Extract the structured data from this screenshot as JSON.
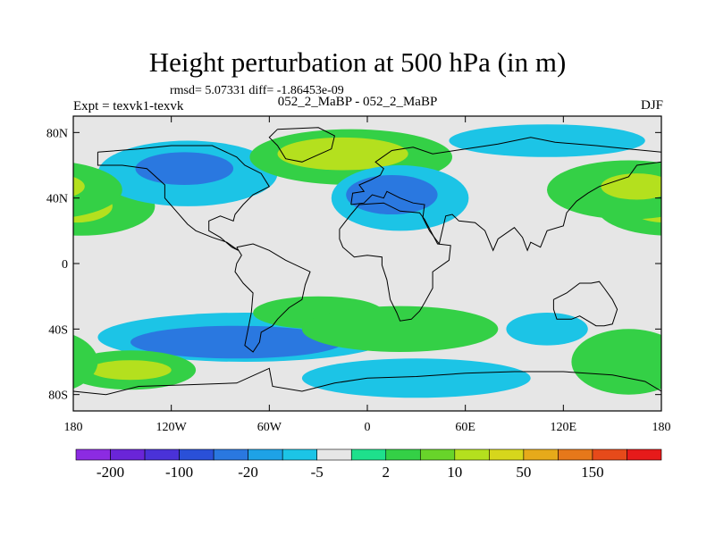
{
  "chart_data": {
    "type": "heatmap",
    "title": "Height perturbation at 500 hPa (in m)",
    "stats_text": "rmsd= 5.07331 diff= -1.86453e-09",
    "expt_label": "Expt = texvk1-texvk",
    "case_label": "052_2_MaBP - 052_2_MaBP",
    "season": "DJF",
    "xlim": [
      -180,
      180
    ],
    "ylim": [
      -90,
      90
    ],
    "x_ticks": [
      {
        "value": -180,
        "label": "180"
      },
      {
        "value": -120,
        "label": "120W"
      },
      {
        "value": -60,
        "label": "60W"
      },
      {
        "value": 0,
        "label": "0"
      },
      {
        "value": 60,
        "label": "60E"
      },
      {
        "value": 120,
        "label": "120E"
      },
      {
        "value": 180,
        "label": "180"
      }
    ],
    "y_ticks": [
      {
        "value": 80,
        "label": "80N"
      },
      {
        "value": 40,
        "label": "40N"
      },
      {
        "value": 0,
        "label": "0"
      },
      {
        "value": -40,
        "label": "40S"
      },
      {
        "value": -80,
        "label": "80S"
      }
    ],
    "colorbar": {
      "colors": [
        "#8c2be2",
        "#6a25d8",
        "#4a32d8",
        "#2a50d8",
        "#2a78e0",
        "#1ea2e6",
        "#1cc4e6",
        "#e6e6e6",
        "#1ee08c",
        "#34d046",
        "#68d42a",
        "#b4e01e",
        "#d6d61c",
        "#e6aa1a",
        "#e6781a",
        "#e64a1a",
        "#e61a1a"
      ],
      "labels": [
        {
          "index": 1,
          "text": "-200"
        },
        {
          "index": 3,
          "text": "-100"
        },
        {
          "index": 5,
          "text": "-20"
        },
        {
          "index": 7,
          "text": "-5"
        },
        {
          "index": 9,
          "text": "2"
        },
        {
          "index": 11,
          "text": "10"
        },
        {
          "index": 13,
          "text": "50"
        },
        {
          "index": 15,
          "text": "150"
        }
      ]
    },
    "field_regions": [
      {
        "name": "nh-west-positive",
        "lon": -175,
        "lat": 35,
        "dlon": 45,
        "dlat": 18,
        "level": 10
      },
      {
        "name": "nh-west-positive-core",
        "lon": -178,
        "lat": 35,
        "dlon": 22,
        "dlat": 10,
        "level": 50
      },
      {
        "name": "nh-pacific-negative",
        "lon": -110,
        "lat": 55,
        "dlon": 55,
        "dlat": 20,
        "level": -5
      },
      {
        "name": "nh-pacific-negative-core",
        "lon": -112,
        "lat": 58,
        "dlon": 30,
        "dlat": 10,
        "level": -20
      },
      {
        "name": "nh-atlantic-positive",
        "lon": -10,
        "lat": 65,
        "dlon": 62,
        "dlat": 17,
        "level": 10
      },
      {
        "name": "nh-atlantic-positive-core",
        "lon": -15,
        "lat": 67,
        "dlon": 40,
        "dlat": 10,
        "level": 50
      },
      {
        "name": "nh-europe-negative",
        "lon": 20,
        "lat": 40,
        "dlon": 42,
        "dlat": 20,
        "level": -5
      },
      {
        "name": "nh-europe-negative-core",
        "lon": 15,
        "lat": 42,
        "dlon": 28,
        "dlat": 12,
        "level": -20
      },
      {
        "name": "nh-asia-positive",
        "lon": 160,
        "lat": 45,
        "dlon": 50,
        "dlat": 18,
        "level": 10
      },
      {
        "name": "nh-asia-positive-core",
        "lon": 165,
        "lat": 47,
        "dlon": 22,
        "dlat": 8,
        "level": 50
      },
      {
        "name": "nh-siberia-negative",
        "lon": 110,
        "lat": 75,
        "dlon": 60,
        "dlat": 10,
        "level": -5
      },
      {
        "name": "sh-south-pacific-negative",
        "lon": -75,
        "lat": -45,
        "dlon": 90,
        "dlat": 15,
        "level": -5
      },
      {
        "name": "sh-south-pacific-negative-core",
        "lon": -80,
        "lat": -48,
        "dlon": 65,
        "dlat": 10,
        "level": -20
      },
      {
        "name": "sh-southwest-positive",
        "lon": -145,
        "lat": -65,
        "dlon": 40,
        "dlat": 12,
        "level": 10
      },
      {
        "name": "sh-southwest-positive-core",
        "lon": -145,
        "lat": -65,
        "dlon": 25,
        "dlat": 6,
        "level": 50
      },
      {
        "name": "sh-atlantic-positive",
        "lon": -30,
        "lat": -30,
        "dlon": 40,
        "dlat": 10,
        "level": 10
      },
      {
        "name": "sh-indian-positive",
        "lon": 20,
        "lat": -40,
        "dlon": 60,
        "dlat": 14,
        "level": 10
      },
      {
        "name": "sh-southern-negative",
        "lon": 30,
        "lat": -70,
        "dlon": 70,
        "dlat": 12,
        "level": -5
      },
      {
        "name": "sh-southeast-positive",
        "lon": 160,
        "lat": -60,
        "dlon": 35,
        "dlat": 20,
        "level": 10
      },
      {
        "name": "sh-southeast-negative",
        "lon": 110,
        "lat": -40,
        "dlon": 25,
        "dlat": 10,
        "level": -5
      }
    ]
  }
}
